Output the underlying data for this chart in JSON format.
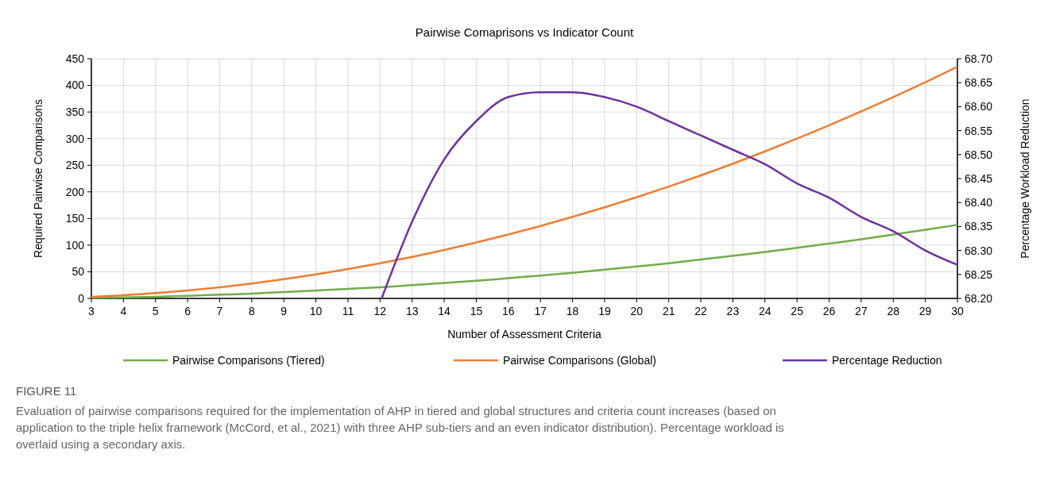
{
  "chart_data": {
    "type": "line",
    "title": "Pairwise Comaprisons vs Indicator Count",
    "xlabel": "Number of Assessment Criteria",
    "ylabel": "Required Pairwise Comparisons",
    "y2label": "Percentage Workload Reduction",
    "x": [
      3,
      4,
      5,
      6,
      7,
      8,
      9,
      10,
      11,
      12,
      13,
      14,
      15,
      16,
      17,
      18,
      19,
      20,
      21,
      22,
      23,
      24,
      25,
      26,
      27,
      28,
      29,
      30
    ],
    "series": [
      {
        "name": "Pairwise Comparisons (Tiered)",
        "color": "#70ad47",
        "values": [
          1,
          2,
          3,
          5,
          7,
          9,
          12,
          15,
          18,
          21,
          25,
          29,
          33,
          38,
          43,
          48,
          54,
          60,
          66,
          73,
          80,
          87,
          95,
          103,
          111,
          120,
          129,
          138
        ]
      },
      {
        "name": "Pairwise Comparisons (Global)",
        "color": "#ed7d31",
        "values": [
          3,
          6,
          10,
          15,
          21,
          28,
          36,
          45,
          55,
          66,
          78,
          91,
          105,
          120,
          136,
          153,
          171,
          190,
          210,
          231,
          253,
          276,
          300,
          325,
          351,
          378,
          406,
          435
        ]
      },
      {
        "name": "Percentage Reduction",
        "color": "#7030a0",
        "axis": "y2",
        "x": [
          12.05,
          13,
          14,
          15,
          16,
          17,
          18,
          19,
          20,
          21,
          22,
          23,
          24,
          25,
          26,
          27,
          28,
          29,
          30
        ],
        "values": [
          68.2,
          68.36,
          68.49,
          68.57,
          68.62,
          68.63,
          68.63,
          68.62,
          68.6,
          68.57,
          68.54,
          68.51,
          68.48,
          68.44,
          68.41,
          68.37,
          68.34,
          68.3,
          68.27
        ]
      }
    ],
    "xlim": [
      3,
      30
    ],
    "xticks": [
      3,
      4,
      5,
      6,
      7,
      8,
      9,
      10,
      11,
      12,
      13,
      14,
      15,
      16,
      17,
      18,
      19,
      20,
      21,
      22,
      23,
      24,
      25,
      26,
      27,
      28,
      29,
      30
    ],
    "ylim": [
      0,
      450
    ],
    "yticks": [
      0,
      50,
      100,
      150,
      200,
      250,
      300,
      350,
      400,
      450
    ],
    "y2lim": [
      68.2,
      68.7
    ],
    "y2ticks": [
      {
        "value": 68.2,
        "label": "68.20"
      },
      {
        "value": 68.25,
        "label": "68.25"
      },
      {
        "value": 68.3,
        "label": "68.30"
      },
      {
        "value": 68.35,
        "label": "68.35"
      },
      {
        "value": 68.4,
        "label": "68.40"
      },
      {
        "value": 68.45,
        "label": "68.45"
      },
      {
        "value": 68.5,
        "label": "68.50"
      },
      {
        "value": 68.55,
        "label": "68.55"
      },
      {
        "value": 68.6,
        "label": "68.60"
      },
      {
        "value": 68.65,
        "label": "68.65"
      },
      {
        "value": 68.7,
        "label": "68.70"
      }
    ],
    "grid": true,
    "legend": "bottom",
    "line_style": "solid",
    "marker": "none",
    "annotations": [
      "FIGURE 11",
      "Evaluation of pairwise comparisons required for the implementation of AHP in tiered and global structures and criteria count increases (based on application to the triple helix framework (McCord, et al., 2021) with three AHP sub-tiers and an even indicator distribution). Percentage workload is overlaid using a secondary axis."
    ]
  }
}
